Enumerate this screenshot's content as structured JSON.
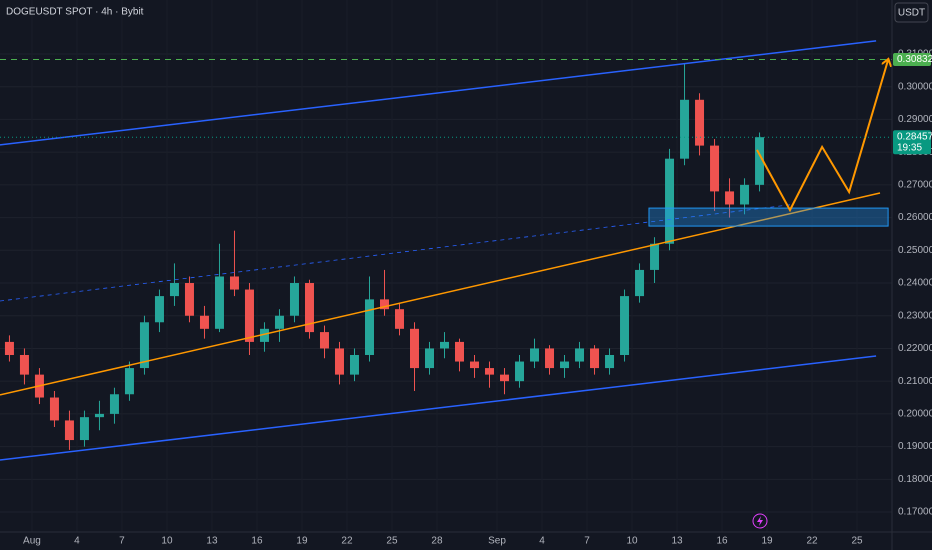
{
  "chart_data": {
    "type": "candlestick",
    "title": "DOGEUSDT SPOT · 4h · Bybit",
    "currency": "USDT",
    "up_color": "#26a69a",
    "down_color": "#ef5350",
    "grid": true,
    "xlim": [
      -2.13,
      57.33
    ],
    "ylim": [
      0.1639,
      0.3265
    ],
    "xticks": [
      {
        "value": 0,
        "label": "Aug"
      },
      {
        "value": 3,
        "label": "4"
      },
      {
        "value": 6,
        "label": "7"
      },
      {
        "value": 9,
        "label": "10"
      },
      {
        "value": 12,
        "label": "13"
      },
      {
        "value": 15,
        "label": "16"
      },
      {
        "value": 18,
        "label": "19"
      },
      {
        "value": 21,
        "label": "22"
      },
      {
        "value": 24,
        "label": "25"
      },
      {
        "value": 27,
        "label": "28"
      },
      {
        "value": 31,
        "label": "Sep"
      },
      {
        "value": 34,
        "label": "4"
      },
      {
        "value": 37,
        "label": "7"
      },
      {
        "value": 40,
        "label": "10"
      },
      {
        "value": 43,
        "label": "13"
      },
      {
        "value": 46,
        "label": "16"
      },
      {
        "value": 49,
        "label": "19"
      },
      {
        "value": 52,
        "label": "22"
      },
      {
        "value": 55,
        "label": "25"
      }
    ],
    "yticks": [
      {
        "value": 0.17,
        "label": "0.17000"
      },
      {
        "value": 0.18,
        "label": "0.18000"
      },
      {
        "value": 0.19,
        "label": "0.19000"
      },
      {
        "value": 0.2,
        "label": "0.20000"
      },
      {
        "value": 0.21,
        "label": "0.21000"
      },
      {
        "value": 0.22,
        "label": "0.22000"
      },
      {
        "value": 0.23,
        "label": "0.23000"
      },
      {
        "value": 0.24,
        "label": "0.24000"
      },
      {
        "value": 0.25,
        "label": "0.25000"
      },
      {
        "value": 0.26,
        "label": "0.26000"
      },
      {
        "value": 0.27,
        "label": "0.27000"
      },
      {
        "value": 0.28,
        "label": "0.28000"
      },
      {
        "value": 0.29,
        "label": "0.29000"
      },
      {
        "value": 0.3,
        "label": "0.30000"
      },
      {
        "value": 0.31,
        "label": "0.31000"
      }
    ],
    "x": [
      -1.5,
      -0.5,
      0.5,
      1.5,
      2.5,
      3.5,
      4.5,
      5.5,
      6.5,
      7.5,
      8.5,
      9.5,
      10.5,
      11.5,
      12.5,
      13.5,
      14.5,
      15.5,
      16.5,
      17.5,
      18.5,
      19.5,
      20.5,
      21.5,
      22.5,
      23.5,
      24.5,
      25.5,
      26.5,
      27.5,
      28.5,
      29.5,
      30.5,
      31.5,
      32.5,
      33.5,
      34.5,
      35.5,
      36.5,
      37.5,
      38.5,
      39.5,
      40.5,
      41.5,
      42.5,
      43.5,
      44.5,
      45.5,
      46.5,
      47.5,
      48.5
    ],
    "open": [
      0.222,
      0.218,
      0.212,
      0.205,
      0.198,
      0.192,
      0.199,
      0.2,
      0.206,
      0.214,
      0.228,
      0.236,
      0.24,
      0.23,
      0.226,
      0.242,
      0.238,
      0.222,
      0.226,
      0.23,
      0.24,
      0.225,
      0.22,
      0.212,
      0.218,
      0.235,
      0.232,
      0.226,
      0.214,
      0.22,
      0.222,
      0.216,
      0.214,
      0.212,
      0.21,
      0.216,
      0.22,
      0.214,
      0.216,
      0.22,
      0.214,
      0.218,
      0.236,
      0.244,
      0.252,
      0.278,
      0.296,
      0.282,
      0.268,
      0.264,
      0.27
    ],
    "high": [
      0.224,
      0.22,
      0.214,
      0.207,
      0.201,
      0.201,
      0.204,
      0.208,
      0.216,
      0.23,
      0.238,
      0.246,
      0.242,
      0.233,
      0.252,
      0.256,
      0.24,
      0.228,
      0.232,
      0.242,
      0.241,
      0.227,
      0.222,
      0.22,
      0.242,
      0.244,
      0.234,
      0.228,
      0.222,
      0.225,
      0.223,
      0.218,
      0.216,
      0.214,
      0.218,
      0.223,
      0.221,
      0.218,
      0.222,
      0.221,
      0.22,
      0.238,
      0.246,
      0.254,
      0.281,
      0.307,
      0.298,
      0.284,
      0.272,
      0.272,
      0.286
    ],
    "low": [
      0.216,
      0.209,
      0.203,
      0.196,
      0.189,
      0.19,
      0.195,
      0.197,
      0.204,
      0.212,
      0.225,
      0.233,
      0.228,
      0.223,
      0.225,
      0.236,
      0.218,
      0.219,
      0.222,
      0.228,
      0.223,
      0.217,
      0.209,
      0.21,
      0.216,
      0.23,
      0.224,
      0.207,
      0.212,
      0.217,
      0.213,
      0.211,
      0.208,
      0.206,
      0.208,
      0.214,
      0.212,
      0.211,
      0.214,
      0.212,
      0.212,
      0.216,
      0.234,
      0.24,
      0.25,
      0.276,
      0.279,
      0.262,
      0.26,
      0.261,
      0.268
    ],
    "close": [
      0.218,
      0.212,
      0.205,
      0.198,
      0.192,
      0.199,
      0.2,
      0.206,
      0.214,
      0.228,
      0.236,
      0.24,
      0.23,
      0.226,
      0.242,
      0.238,
      0.222,
      0.226,
      0.23,
      0.24,
      0.225,
      0.22,
      0.212,
      0.218,
      0.235,
      0.232,
      0.226,
      0.214,
      0.22,
      0.222,
      0.216,
      0.214,
      0.212,
      0.21,
      0.216,
      0.22,
      0.214,
      0.216,
      0.22,
      0.214,
      0.218,
      0.236,
      0.244,
      0.252,
      0.278,
      0.296,
      0.282,
      0.268,
      0.264,
      0.27,
      0.28457
    ],
    "markers": [
      {
        "value": 0.30832,
        "color": "#4caf50",
        "dash": "6,5"
      },
      {
        "value": 0.28457,
        "sublabel": "19:35",
        "color": "#089981",
        "dash": "1,3"
      }
    ],
    "drawings": [
      {
        "kind": "line",
        "color": "#2962ff",
        "width": 1.5,
        "x": [
          -2.13,
          56.27
        ],
        "y": [
          0.2822,
          0.314
        ]
      },
      {
        "kind": "line",
        "color": "#2962ff",
        "width": 1.5,
        "x": [
          -2.13,
          56.27
        ],
        "y": [
          0.1859,
          0.2177
        ]
      },
      {
        "kind": "line",
        "color": "#2962ff",
        "width": 0.8,
        "dash": "4,4",
        "x": [
          -2.13,
          50.53
        ],
        "y": [
          0.2345,
          0.2639
        ]
      },
      {
        "kind": "line",
        "color": "#ff9800",
        "width": 1.5,
        "x": [
          -2.13,
          56.53
        ],
        "y": [
          0.2058,
          0.2675
        ]
      },
      {
        "kind": "rect",
        "color": "#2196f3",
        "x": [
          41.13,
          57.07
        ],
        "y": [
          0.2629,
          0.2574
        ]
      },
      {
        "kind": "line",
        "color": "#ff9800",
        "width": 2,
        "arrow": true,
        "x": [
          48.33,
          50.53,
          52.67,
          54.47,
          57.07
        ],
        "y": [
          0.2807,
          0.2623,
          0.2816,
          0.2678,
          0.3082
        ]
      }
    ]
  }
}
